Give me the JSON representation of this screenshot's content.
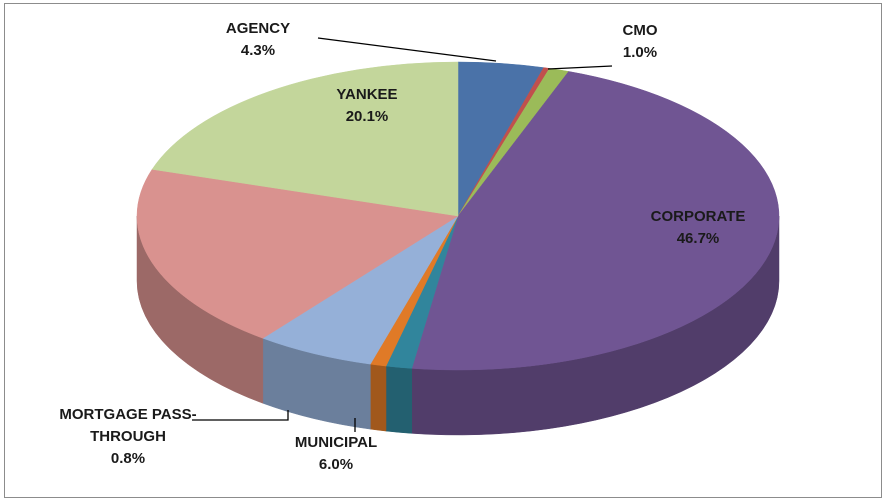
{
  "chart_data": {
    "type": "pie3d",
    "categories": [
      "AGENCY",
      null,
      "CMO",
      "CORPORATE",
      null,
      "MORTGAGE PASS-THROUGH",
      "MUNICIPAL",
      null,
      "YANKEE"
    ],
    "values": [
      4.3,
      0.3,
      1.0,
      46.7,
      1.3,
      0.8,
      6.0,
      19.5,
      20.1
    ],
    "value_labels": [
      "4.3%",
      null,
      "1.0%",
      "46.7%",
      null,
      "0.8%",
      "6.0%",
      null,
      "20.1%"
    ],
    "colors": [
      "#4a72a8",
      "#c0504d",
      "#9bbb59",
      "#705593",
      "#31859c",
      "#e07a27",
      "#95b0d8",
      "#d9928f",
      "#c3d69b"
    ]
  }
}
